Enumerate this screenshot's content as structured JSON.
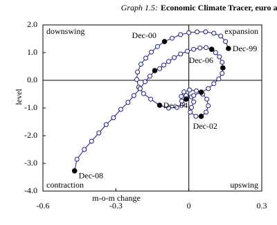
{
  "chart_data": {
    "type": "line",
    "title_label": "Graph 1.5:",
    "title": "Economic Climate Tracer, euro area",
    "x_label": "m-o-m change",
    "y_label": "level",
    "quadrant_labels": [
      "downswing",
      "expansion",
      "contraction",
      "upswing"
    ],
    "xlim": [
      -0.6,
      0.3
    ],
    "xticks": [
      -0.6,
      -0.3,
      0,
      0.3
    ],
    "ylim": [
      -4,
      2
    ],
    "yticks": [
      {
        "value": 2,
        "label": "2.0"
      },
      {
        "value": 1,
        "label": "1.0"
      },
      {
        "value": 0,
        "label": "0.0"
      },
      {
        "value": -1,
        "label": "-1.0"
      },
      {
        "value": -2,
        "label": "-2.0"
      },
      {
        "value": -3,
        "label": "-3.0"
      },
      {
        "value": -4,
        "label": "-4.0"
      }
    ],
    "color": "#1c1c7a",
    "x": [
      0.163,
      0.151,
      0.131,
      0.103,
      0.069,
      0.034,
      0.0,
      -0.034,
      -0.069,
      -0.1,
      -0.129,
      -0.154,
      -0.177,
      -0.197,
      -0.211,
      -0.214,
      -0.206,
      -0.186,
      -0.157,
      -0.12,
      -0.083,
      -0.049,
      -0.026,
      -0.02,
      -0.011,
      0.011,
      0.02,
      0.011,
      0.006,
      0.029,
      0.051,
      0.071,
      0.08,
      0.074,
      0.057,
      0.031,
      0.003,
      -0.02,
      -0.031,
      -0.029,
      -0.011,
      0.02,
      0.051,
      0.08,
      0.103,
      0.123,
      0.137,
      0.14,
      0.137,
      0.126,
      0.11,
      0.094,
      0.071,
      0.046,
      0.02,
      -0.006,
      -0.034,
      -0.06,
      -0.083,
      -0.103,
      -0.12,
      -0.14,
      -0.16,
      -0.18,
      -0.2,
      -0.226,
      -0.25,
      -0.28,
      -0.31,
      -0.34,
      -0.37,
      -0.4,
      -0.43,
      -0.46,
      -0.47
    ],
    "series": [
      {
        "values": [
          1.15,
          1.4,
          1.6,
          1.7,
          1.75,
          1.75,
          1.72,
          1.65,
          1.52,
          1.4,
          1.22,
          1.02,
          0.8,
          0.58,
          0.3,
          0.03,
          -0.25,
          -0.48,
          -0.68,
          -0.9,
          -1.0,
          -0.98,
          -0.85,
          -0.65,
          -0.55,
          -0.6,
          -0.78,
          -0.98,
          -1.15,
          -1.3,
          -1.3,
          -1.15,
          -0.92,
          -0.68,
          -0.5,
          -0.38,
          -0.35,
          -0.42,
          -0.58,
          -0.75,
          -0.68,
          -0.55,
          -0.43,
          -0.3,
          -0.12,
          0.05,
          0.25,
          0.45,
          0.65,
          0.85,
          1.0,
          1.12,
          1.18,
          1.17,
          1.12,
          1.05,
          0.95,
          0.82,
          0.68,
          0.55,
          0.42,
          0.35,
          0.15,
          -0.05,
          -0.3,
          -0.55,
          -0.8,
          -1.05,
          -1.35,
          -1.6,
          -1.9,
          -2.2,
          -2.5,
          -2.85,
          -3.27
        ]
      }
    ],
    "filled": [
      0,
      9,
      19,
      30,
      40,
      42,
      47,
      51,
      61,
      74
    ],
    "annotations": [
      {
        "text": "Dec-00",
        "index": 9
      },
      {
        "text": "Dec-99",
        "index": 0
      },
      {
        "text": "Dec-06",
        "index": 51
      },
      {
        "text": "Dec-04",
        "index": 40
      },
      {
        "text": "Dec-02",
        "index": 30
      },
      {
        "text": "Dec-08",
        "index": 74
      }
    ]
  }
}
